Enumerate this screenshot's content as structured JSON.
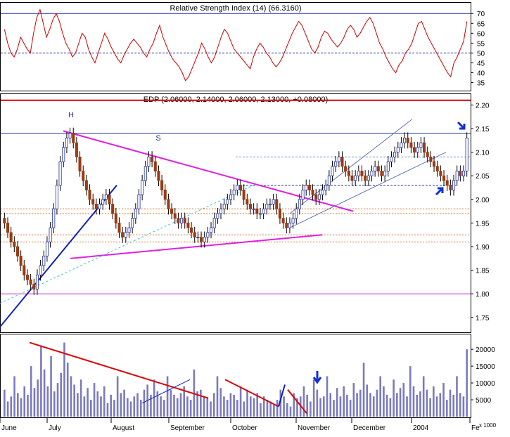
{
  "chart_data": [
    {
      "type": "line",
      "title": "Relative Strength Index (14) (66.3160)",
      "series": [
        {
          "name": "RSI",
          "color": "#cc0000",
          "values": [
            62,
            55,
            50,
            48,
            52,
            58,
            55,
            52,
            50,
            60,
            68,
            72,
            65,
            58,
            62,
            67,
            70,
            66,
            60,
            55,
            52,
            48,
            50,
            55,
            60,
            58,
            52,
            48,
            45,
            50,
            55,
            60,
            57,
            53,
            50,
            47,
            45,
            49,
            52,
            55,
            57,
            55,
            53,
            50,
            48,
            52,
            55,
            60,
            64,
            58,
            54,
            50,
            47,
            45,
            43,
            40,
            36,
            38,
            42,
            46,
            50,
            55,
            52,
            48,
            45,
            48,
            53,
            58,
            62,
            60,
            56,
            52,
            50,
            48,
            46,
            44,
            42,
            48,
            52,
            55,
            53,
            50,
            48,
            45,
            43,
            45,
            48,
            52,
            56,
            60,
            63,
            66,
            64,
            60,
            56,
            52,
            50,
            53,
            58,
            61,
            60,
            57,
            55,
            53,
            55,
            58,
            62,
            64,
            62,
            58,
            60,
            63,
            66,
            68,
            65,
            60,
            55,
            52,
            48,
            45,
            42,
            40,
            44,
            46,
            50,
            52,
            55,
            60,
            65,
            66,
            62,
            58,
            55,
            52,
            49,
            46,
            43,
            40,
            38,
            45,
            48,
            52,
            56,
            66
          ]
        }
      ],
      "ylim": [
        32,
        74
      ],
      "yticks": [
        35,
        40,
        45,
        50,
        55,
        60,
        65,
        70
      ],
      "reference_lines": [
        70,
        50
      ]
    },
    {
      "type": "candlestick",
      "title": "EDP (2.06000, 2.14000, 2.06000, 2.13000, +0.08000)",
      "series": [
        {
          "name": "EDP",
          "up_color": "#ffffff",
          "down_color": "#9c3a10",
          "close": [
            1.95,
            1.93,
            1.91,
            1.9,
            1.88,
            1.86,
            1.84,
            1.83,
            1.82,
            1.81,
            1.84,
            1.86,
            1.88,
            1.91,
            1.94,
            1.98,
            2.03,
            2.08,
            2.11,
            2.13,
            2.14,
            2.12,
            2.09,
            2.06,
            2.04,
            2.02,
            2.0,
            1.99,
            1.98,
            1.99,
            2.0,
            2.01,
            1.99,
            1.97,
            1.95,
            1.93,
            1.92,
            1.93,
            1.94,
            1.96,
            1.98,
            2.01,
            2.04,
            2.07,
            2.09,
            2.08,
            2.06,
            2.04,
            2.02,
            2.0,
            1.98,
            1.97,
            1.96,
            1.95,
            1.96,
            1.95,
            1.94,
            1.93,
            1.92,
            1.92,
            1.91,
            1.92,
            1.93,
            1.94,
            1.96,
            1.97,
            1.98,
            1.99,
            2.0,
            2.01,
            2.02,
            2.03,
            2.02,
            2.0,
            1.99,
            1.98,
            1.98,
            1.97,
            1.97,
            1.98,
            1.99,
            1.99,
            2.0,
            1.98,
            1.96,
            1.95,
            1.94,
            1.95,
            1.96,
            1.98,
            2.0,
            2.02,
            2.03,
            2.02,
            2.01,
            2.0,
            2.01,
            2.02,
            2.03,
            2.05,
            2.07,
            2.08,
            2.09,
            2.07,
            2.06,
            2.05,
            2.04,
            2.05,
            2.06,
            2.05,
            2.04,
            2.05,
            2.06,
            2.07,
            2.06,
            2.05,
            2.06,
            2.08,
            2.09,
            2.1,
            2.11,
            2.12,
            2.13,
            2.12,
            2.11,
            2.1,
            2.11,
            2.12,
            2.1,
            2.09,
            2.08,
            2.07,
            2.06,
            2.05,
            2.04,
            2.03,
            2.02,
            2.04,
            2.06,
            2.05,
            2.06,
            2.13
          ]
        }
      ],
      "ylim": [
        1.72,
        2.22
      ],
      "yticks": [
        1.75,
        1.8,
        1.85,
        1.9,
        1.95,
        2.0,
        2.05,
        2.1,
        2.15,
        2.2
      ],
      "horizontal_lines": [
        {
          "value": 2.21,
          "color": "#dd0000"
        },
        {
          "value": 2.14,
          "color": "#2030a0"
        },
        {
          "value": 1.8,
          "color": "#cc22cc"
        },
        {
          "value": 1.98,
          "color": "#e07030"
        },
        {
          "value": 1.97,
          "color": "#e07030"
        },
        {
          "value": 1.925,
          "color": "#e07030"
        },
        {
          "value": 1.91,
          "color": "#e07030"
        }
      ],
      "annotations": [
        {
          "text": "H"
        },
        {
          "text": "S"
        }
      ]
    },
    {
      "type": "bar",
      "title": "",
      "series": [
        {
          "name": "Volume",
          "color": "#7a7abf",
          "values": [
            8000,
            4500,
            6000,
            12000,
            7000,
            5500,
            9000,
            6500,
            15000,
            8500,
            11000,
            21000,
            14000,
            9000,
            18000,
            7500,
            10000,
            13000,
            22000,
            16000,
            12000,
            9500,
            7000,
            11000,
            6000,
            8500,
            5000,
            10000,
            7500,
            6000,
            9000,
            4000,
            6500,
            5000,
            12000,
            7000,
            8000,
            5500,
            4500,
            6000,
            7000,
            5000,
            8000,
            9500,
            6500,
            11000,
            7500,
            6000,
            5000,
            12000,
            8000,
            6500,
            5500,
            7000,
            9000,
            6000,
            5000,
            14000,
            7500,
            8000,
            6000,
            5500,
            4500,
            7000,
            12000,
            8500,
            6000,
            5000,
            7000,
            6500,
            5000,
            9000,
            4500,
            8000,
            6000,
            5500,
            7000,
            4000,
            6000,
            5000,
            4500,
            3500,
            5000,
            8000,
            6000,
            4000,
            3000,
            7000,
            5500,
            6000,
            9000,
            6500,
            4500,
            11000,
            8000,
            5500,
            6000,
            12000,
            7000,
            5000,
            8500,
            6000,
            9000,
            6500,
            5000,
            10000,
            7000,
            8000,
            16000,
            9500,
            7000,
            6000,
            8000,
            12000,
            9000,
            6500,
            5500,
            11000,
            7000,
            8500,
            10000,
            6000,
            15000,
            9000,
            6500,
            7500,
            12000,
            8000,
            5500,
            9000,
            6000,
            7000,
            10000,
            5000,
            8000,
            6500,
            12000,
            7000,
            6000,
            20000
          ]
        }
      ],
      "ylim": [
        0,
        24000
      ],
      "yticks": [
        5000,
        10000,
        15000,
        20000
      ],
      "x_tick_labels": [
        "June",
        "July",
        "August",
        "September",
        "October",
        "November",
        "December",
        "2004",
        "Fe"
      ],
      "unit_label": "x 1000"
    }
  ]
}
